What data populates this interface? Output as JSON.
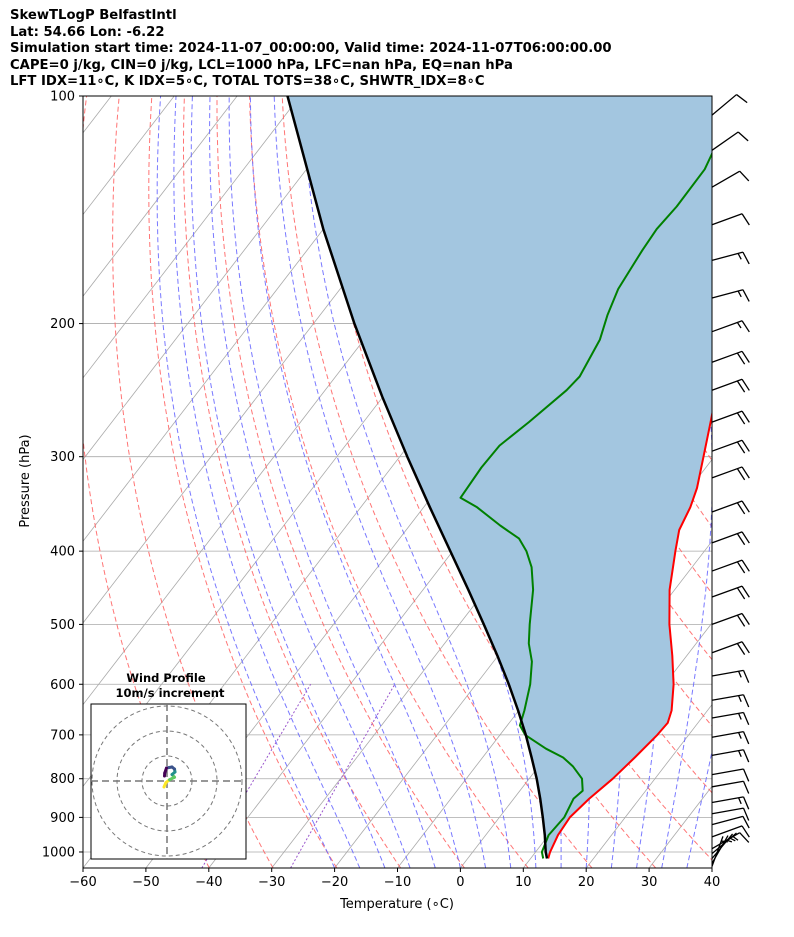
{
  "header": {
    "lines": [
      "SkewTLogP BelfastIntl",
      "Lat: 54.66   Lon: -6.22",
      "Simulation start time: 2024-11-07_00:00:00, Valid time: 2024-11-07T06:00:00.00",
      "CAPE=0 j/kg, CIN=0 j/kg, LCL=1000 hPa, LFC=nan hPa, EQ=nan hPa",
      "LFT IDX=11∘C, K IDX=5∘C, TOTAL TOTS=38∘C, SHWTR_IDX=8∘C"
    ]
  },
  "chart_data": [
    {
      "type": "line",
      "subtype": "skew-t log-p",
      "xlabel": "Temperature (∘C)",
      "ylabel": "Pressure (hPa)",
      "xlim": [
        -60,
        40
      ],
      "ylim": [
        1050,
        100
      ],
      "y_scale": "log",
      "grid": true,
      "x_ticks": [
        -60,
        -50,
        -40,
        -30,
        -20,
        -10,
        0,
        10,
        20,
        30,
        40
      ],
      "x_tick_labels": [
        "−60",
        "−50",
        "−40",
        "−30",
        "−20",
        "−10",
        "0",
        "10",
        "20",
        "30",
        "40"
      ],
      "y_ticks": [
        1000,
        900,
        800,
        700,
        600,
        500,
        400,
        300,
        200,
        100
      ],
      "y_tick_labels": [
        "1000",
        "900",
        "800",
        "700",
        "600",
        "500",
        "400",
        "300",
        "200",
        "100"
      ],
      "colors": {
        "temperature": "#ff0000",
        "dewpoint": "#008000",
        "parcel": "#000000",
        "shading": "#a3c6e0",
        "dry_adiabats": "#ff6666",
        "moist_adiabats": "#6a6aff",
        "mixing_ratio": "#9955cc",
        "isotherms": "#aaaaaa"
      },
      "series": [
        {
          "key": "temperature",
          "points": [
            [
              1020,
              12.8
            ],
            [
              1000,
              12.3
            ],
            [
              950,
              11.5
            ],
            [
              900,
              11.2
            ],
            [
              850,
              12.0
            ],
            [
              800,
              13.3
            ],
            [
              750,
              14.2
            ],
            [
              700,
              15.0
            ],
            [
              675,
              15.2
            ],
            [
              650,
              14.3
            ],
            [
              600,
              11.4
            ],
            [
              550,
              7.7
            ],
            [
              500,
              3.4
            ],
            [
              450,
              -0.8
            ],
            [
              400,
              -4.6
            ],
            [
              375,
              -6.6
            ],
            [
              350,
              -7.6
            ],
            [
              330,
              -8.9
            ],
            [
              300,
              -11.7
            ],
            [
              270,
              -14.8
            ],
            [
              250,
              -17.1
            ],
            [
              235,
              -18.8
            ],
            [
              215,
              -20.3
            ],
            [
              200,
              -21.8
            ],
            [
              190,
              -23.7
            ],
            [
              180,
              -27.3
            ],
            [
              160,
              -33.1
            ],
            [
              150,
              -35.8
            ],
            [
              140,
              -37.6
            ],
            [
              132,
              -38.2
            ],
            [
              120,
              -40.4
            ],
            [
              108,
              -45.3
            ],
            [
              100,
              -48.7
            ]
          ]
        },
        {
          "key": "dewpoint",
          "points": [
            [
              1020,
              12.0
            ],
            [
              1000,
              11.0
            ],
            [
              950,
              10.0
            ],
            [
              900,
              10.3
            ],
            [
              850,
              9.5
            ],
            [
              830,
              10.0
            ],
            [
              800,
              8.4
            ],
            [
              770,
              5.4
            ],
            [
              750,
              2.8
            ],
            [
              730,
              -1.0
            ],
            [
              700,
              -6.0
            ],
            [
              680,
              -8.0
            ],
            [
              650,
              -9.1
            ],
            [
              600,
              -11.4
            ],
            [
              560,
              -13.9
            ],
            [
              530,
              -16.6
            ],
            [
              500,
              -18.8
            ],
            [
              450,
              -22.5
            ],
            [
              420,
              -25.5
            ],
            [
              400,
              -28.3
            ],
            [
              385,
              -31.0
            ],
            [
              370,
              -35.6
            ],
            [
              350,
              -41.5
            ],
            [
              340,
              -45.3
            ],
            [
              310,
              -45.7
            ],
            [
              290,
              -45.5
            ],
            [
              270,
              -43.7
            ],
            [
              245,
              -41.6
            ],
            [
              235,
              -41.2
            ],
            [
              210,
              -42.5
            ],
            [
              195,
              -44.3
            ],
            [
              180,
              -45.8
            ],
            [
              160,
              -46.7
            ],
            [
              150,
              -47.0
            ],
            [
              140,
              -46.6
            ],
            [
              125,
              -46.7
            ],
            [
              115,
              -48.0
            ],
            [
              108,
              -50.7
            ],
            [
              100,
              -53.2
            ]
          ]
        },
        {
          "key": "parcel",
          "points": [
            [
              1020,
              12.6
            ],
            [
              1000,
              11.6
            ],
            [
              950,
              9.4
            ],
            [
              900,
              6.9
            ],
            [
              850,
              4.2
            ],
            [
              800,
              1.2
            ],
            [
              750,
              -2.2
            ],
            [
              700,
              -5.9
            ],
            [
              650,
              -10.1
            ],
            [
              600,
              -14.8
            ],
            [
              550,
              -20.1
            ],
            [
              500,
              -26.1
            ],
            [
              450,
              -32.8
            ],
            [
              400,
              -40.4
            ],
            [
              350,
              -49.0
            ],
            [
              300,
              -58.8
            ],
            [
              250,
              -70.1
            ],
            [
              200,
              -83.5
            ],
            [
              150,
              -100.0
            ],
            [
              100,
              -122.0
            ]
          ]
        }
      ],
      "wind_barbs": [
        {
          "p": 1045,
          "speed_kt": 5,
          "dir": 200
        },
        {
          "p": 1035,
          "speed_kt": 5,
          "dir": 210
        },
        {
          "p": 1020,
          "speed_kt": 5,
          "dir": 220
        },
        {
          "p": 1005,
          "speed_kt": 5,
          "dir": 230
        },
        {
          "p": 990,
          "speed_kt": 10,
          "dir": 240
        },
        {
          "p": 955,
          "speed_kt": 10,
          "dir": 250
        },
        {
          "p": 920,
          "speed_kt": 10,
          "dir": 255
        },
        {
          "p": 890,
          "speed_kt": 10,
          "dir": 260
        },
        {
          "p": 860,
          "speed_kt": 15,
          "dir": 260
        },
        {
          "p": 820,
          "speed_kt": 10,
          "dir": 260
        },
        {
          "p": 790,
          "speed_kt": 10,
          "dir": 260
        },
        {
          "p": 745,
          "speed_kt": 15,
          "dir": 260
        },
        {
          "p": 705,
          "speed_kt": 15,
          "dir": 260
        },
        {
          "p": 665,
          "speed_kt": 15,
          "dir": 260
        },
        {
          "p": 630,
          "speed_kt": 15,
          "dir": 260
        },
        {
          "p": 585,
          "speed_kt": 15,
          "dir": 260
        },
        {
          "p": 545,
          "speed_kt": 20,
          "dir": 250
        },
        {
          "p": 500,
          "speed_kt": 20,
          "dir": 250
        },
        {
          "p": 460,
          "speed_kt": 20,
          "dir": 250
        },
        {
          "p": 425,
          "speed_kt": 20,
          "dir": 250
        },
        {
          "p": 390,
          "speed_kt": 20,
          "dir": 250
        },
        {
          "p": 355,
          "speed_kt": 20,
          "dir": 250
        },
        {
          "p": 320,
          "speed_kt": 20,
          "dir": 250
        },
        {
          "p": 295,
          "speed_kt": 20,
          "dir": 250
        },
        {
          "p": 270,
          "speed_kt": 20,
          "dir": 250
        },
        {
          "p": 245,
          "speed_kt": 20,
          "dir": 250
        },
        {
          "p": 225,
          "speed_kt": 20,
          "dir": 250
        },
        {
          "p": 205,
          "speed_kt": 15,
          "dir": 250
        },
        {
          "p": 185,
          "speed_kt": 15,
          "dir": 255
        },
        {
          "p": 165,
          "speed_kt": 15,
          "dir": 255
        },
        {
          "p": 148,
          "speed_kt": 10,
          "dir": 250
        },
        {
          "p": 132,
          "speed_kt": 10,
          "dir": 240
        },
        {
          "p": 118,
          "speed_kt": 10,
          "dir": 235
        },
        {
          "p": 106,
          "speed_kt": 10,
          "dir": 230
        }
      ]
    },
    {
      "type": "line",
      "subtype": "hodograph",
      "title": "Wind Profile",
      "subtitle": "10m/s increment",
      "ring_step_ms": 10,
      "rings": [
        10,
        20,
        30
      ],
      "grid": true,
      "color_scale": [
        "#fde725",
        "#5ec962",
        "#21918c",
        "#3b528b",
        "#440154"
      ],
      "points_uv": [
        [
          -1.2,
          -2.4
        ],
        [
          -0.4,
          -0.6
        ],
        [
          1.0,
          0.5
        ],
        [
          3.0,
          1.5
        ],
        [
          2.0,
          2.6
        ],
        [
          3.2,
          3.6
        ],
        [
          3.0,
          4.8
        ],
        [
          2.0,
          5.6
        ],
        [
          -0.2,
          5.2
        ],
        [
          -0.9,
          3.2
        ],
        [
          -1.0,
          2.0
        ]
      ]
    }
  ]
}
